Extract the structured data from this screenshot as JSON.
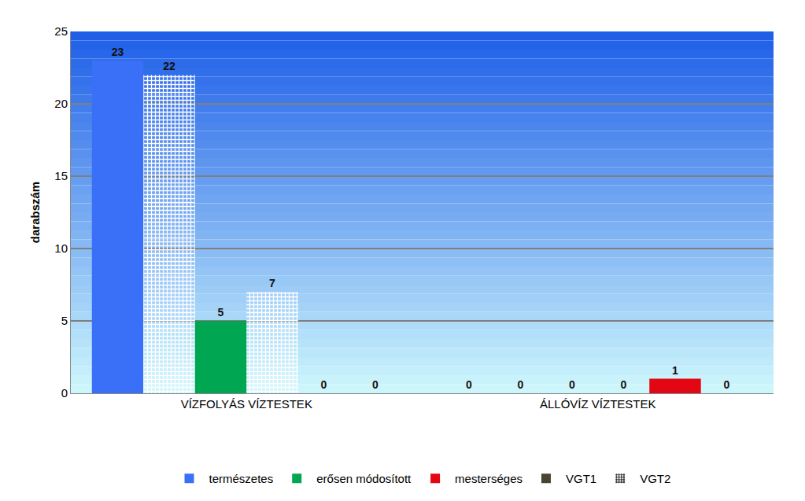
{
  "chart_data": {
    "type": "bar",
    "categories": [
      "VÍZFOLYÁS VÍZTESTEK",
      "ÁLLÓVÍZ VÍZTESTEK"
    ],
    "y_label": "darabszám",
    "series": [
      {
        "name": "természetes",
        "period": "VGT1",
        "color": "#3a6ff7",
        "values": [
          23,
          0
        ]
      },
      {
        "name": "természetes",
        "period": "VGT2",
        "color": "#3a6ff7",
        "values": [
          22,
          0
        ]
      },
      {
        "name": "erősen módosított",
        "period": "VGT1",
        "color": "#00a651",
        "values": [
          5,
          0
        ]
      },
      {
        "name": "erősen módosított",
        "period": "VGT2",
        "color": "#00a651",
        "values": [
          7,
          0
        ]
      },
      {
        "name": "mesterséges",
        "period": "VGT1",
        "color": "#e30613",
        "values": [
          0,
          1
        ]
      },
      {
        "name": "mesterséges",
        "period": "VGT2",
        "color": "#e30613",
        "values": [
          0,
          0
        ]
      }
    ],
    "periods": [
      {
        "name": "VGT1",
        "color": "#4a4330",
        "marker": "solid"
      },
      {
        "name": "VGT2",
        "color": "#000000",
        "marker": "checkered"
      }
    ],
    "ylim": [
      0,
      25
    ],
    "yticks": [
      0,
      5,
      10,
      15,
      20,
      25
    ],
    "grid": true,
    "data_labels": true,
    "legend": "bottom"
  }
}
